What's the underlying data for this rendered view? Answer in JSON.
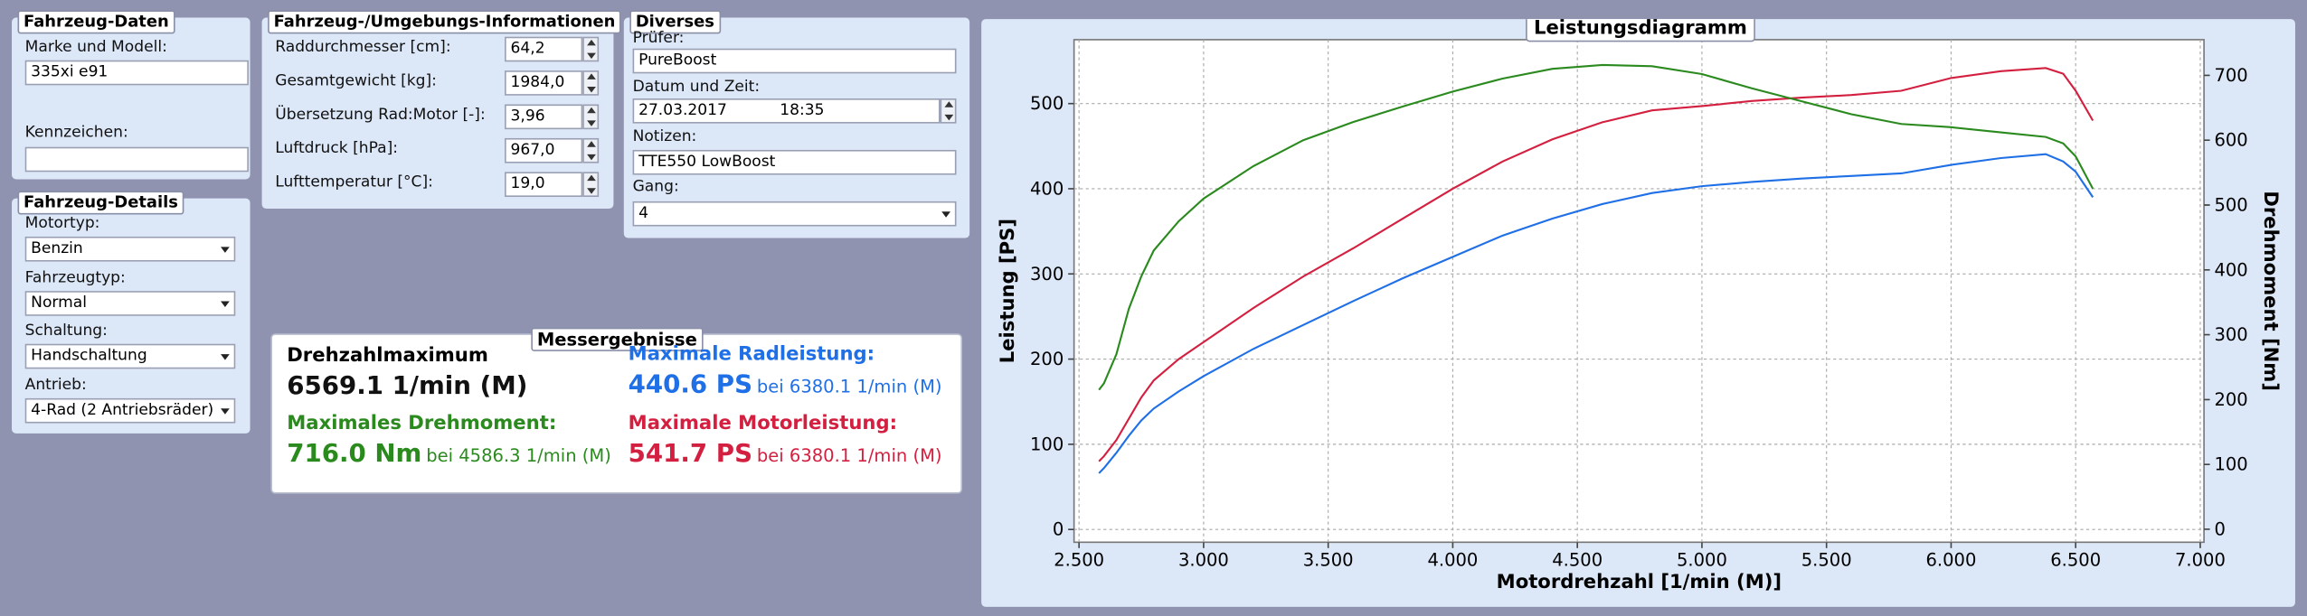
{
  "vehicle_data": {
    "title": "Fahrzeug-Daten",
    "make_model_label": "Marke und Modell:",
    "make_model": "335xi e91",
    "plate_label": "Kennzeichen:"
  },
  "vehicle_details": {
    "title": "Fahrzeug-Details",
    "fields": [
      {
        "label": "Motortyp:",
        "value": "Benzin"
      },
      {
        "label": "Fahrzeugtyp:",
        "value": "Normal"
      },
      {
        "label": "Schaltung:",
        "value": "Handschaltung"
      },
      {
        "label": "Antrieb:",
        "value": "4-Rad (2 Antriebsräder)"
      }
    ]
  },
  "environment": {
    "title": "Fahrzeug-/Umgebungs-Informationen",
    "fields": [
      {
        "label": "Raddurchmesser [cm]:",
        "value": "64,2"
      },
      {
        "label": "Gesamtgewicht [kg]:",
        "value": "1984,0"
      },
      {
        "label": "Übersetzung Rad:Motor [-]:",
        "value": "3,96"
      },
      {
        "label": "Luftdruck [hPa]:",
        "value": "967,0"
      },
      {
        "label": "Lufttemperatur [°C]:",
        "value": "19,0"
      }
    ]
  },
  "misc": {
    "title": "Diverses",
    "tester_label": "Prüfer:",
    "tester": "PureBoost",
    "datetime_label": "Datum und Zeit:",
    "date": "27.03.2017",
    "time": "18:35",
    "notes_label": "Notizen:",
    "notes": "TTE550 LowBoost",
    "gear_label": "Gang:",
    "gear": "4"
  },
  "results": {
    "title": "Messergebnisse",
    "items": [
      {
        "label": "Drehzahlmaximum",
        "value": "6569.1 1/min (M)",
        "color": "#111111"
      },
      {
        "label": "Maximale Radleistung:",
        "value": "440.6 PS",
        "detail": "bei 6380.1 1/min (M)",
        "color": "#1f6fe6"
      },
      {
        "label": "Maximales Drehmoment:",
        "value": "716.0 Nm",
        "detail": "bei 4586.3 1/min (M)",
        "color": "#2a8a1e"
      },
      {
        "label": "Maximale Motorleistung:",
        "value": "541.7 PS",
        "detail": "bei 6380.1 1/min (M)",
        "color": "#d42040"
      }
    ]
  },
  "chart_data": {
    "type": "line",
    "title": "Leistungsdiagramm",
    "x_label": "Motordrehzahl [1/min (M)]",
    "y_label": "Leistung [PS]",
    "y2_label": "Drehmoment [Nm]",
    "x": [
      2580,
      2600,
      2650,
      2700,
      2750,
      2800,
      2900,
      3000,
      3200,
      3400,
      3600,
      3800,
      4000,
      4200,
      4400,
      4600,
      4800,
      5000,
      5200,
      5400,
      5600,
      5800,
      6000,
      6200,
      6380,
      6450,
      6500,
      6569
    ],
    "series": [
      {
        "name": "Radleistung",
        "color": "#1f6fe6",
        "values": [
          66,
          72,
          90,
          110,
          128,
          142,
          162,
          180,
          212,
          240,
          268,
          295,
          320,
          345,
          365,
          382,
          395,
          403,
          408,
          412,
          415,
          418,
          428,
          436,
          440.6,
          432,
          420,
          390
        ]
      },
      {
        "name": "Motorleistung",
        "color": "#d42040",
        "values": [
          80,
          86,
          105,
          130,
          155,
          175,
          200,
          220,
          260,
          297,
          330,
          365,
          400,
          432,
          458,
          478,
          492,
          497,
          503,
          507,
          510,
          515,
          530,
          538,
          541.7,
          535,
          515,
          480
        ]
      },
      {
        "name": "Drehmoment",
        "color": "#2a8a1e",
        "axis": "y2",
        "values": [
          215,
          225,
          270,
          340,
          390,
          430,
          475,
          510,
          560,
          600,
          628,
          652,
          675,
          695,
          710,
          716,
          714,
          702,
          680,
          660,
          640,
          625,
          620,
          612,
          605,
          595,
          575,
          525
        ]
      }
    ],
    "xlim": [
      2480,
      7015
    ],
    "xticks": [
      {
        "value": 2500,
        "label": "2.500"
      },
      {
        "value": 3000,
        "label": "3.000"
      },
      {
        "value": 3500,
        "label": "3.500"
      },
      {
        "value": 4000,
        "label": "4.000"
      },
      {
        "value": 4500,
        "label": "4.500"
      },
      {
        "value": 5000,
        "label": "5.000"
      },
      {
        "value": 5500,
        "label": "5.500"
      },
      {
        "value": 6000,
        "label": "6.000"
      },
      {
        "value": 6500,
        "label": "6.500"
      },
      {
        "value": 7000,
        "label": "7.000"
      }
    ],
    "ylim": [
      -15,
      575
    ],
    "yticks": [
      0,
      100,
      200,
      300,
      400,
      500
    ],
    "y2lim": [
      -20,
      755
    ],
    "y2ticks": [
      0,
      100,
      200,
      300,
      400,
      500,
      600,
      700
    ],
    "grid": true
  }
}
